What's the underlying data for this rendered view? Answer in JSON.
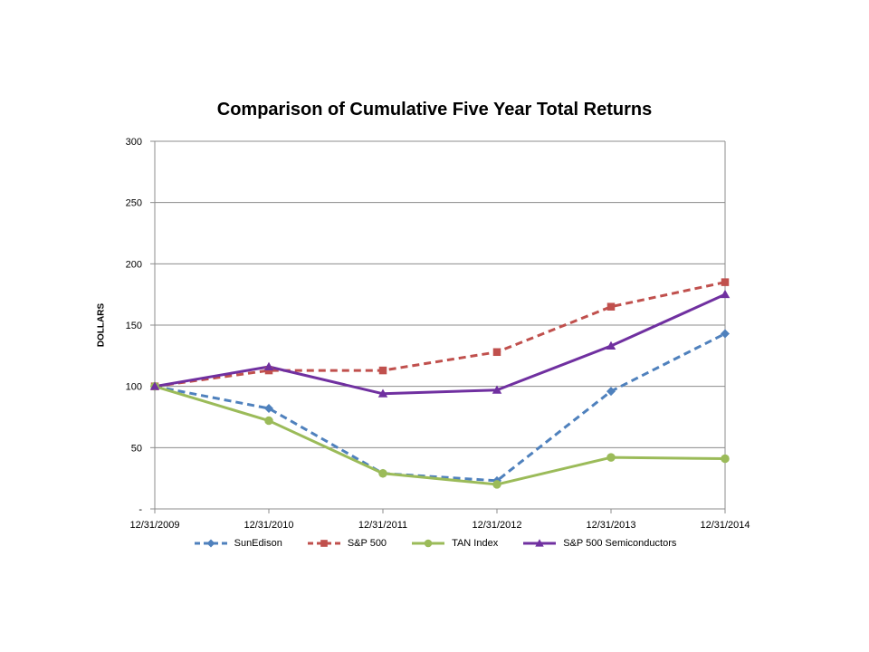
{
  "chart_data": {
    "type": "line",
    "title": "Comparison of Cumulative Five Year Total Returns",
    "xlabel": "",
    "ylabel": "DOLLARS",
    "x": [
      "12/31/2009",
      "12/31/2010",
      "12/31/2011",
      "12/31/2012",
      "12/31/2013",
      "12/31/2014"
    ],
    "ylim": [
      0,
      300
    ],
    "yticks": [
      0,
      50,
      100,
      150,
      200,
      250,
      300
    ],
    "ytick_labels": [
      "-",
      "50",
      "100",
      "150",
      "200",
      "250",
      "300"
    ],
    "grid": true,
    "legend_position": "bottom",
    "series": [
      {
        "name": "SunEdison",
        "values": [
          100,
          82,
          29,
          23,
          96,
          143
        ],
        "color": "#4f81bd",
        "dash": true,
        "marker": "diamond"
      },
      {
        "name": "S&P 500",
        "values": [
          100,
          113,
          113,
          128,
          165,
          185
        ],
        "color": "#c0504d",
        "dash": true,
        "marker": "square"
      },
      {
        "name": "TAN Index",
        "values": [
          100,
          72,
          29,
          20,
          42,
          41
        ],
        "color": "#9bbb59",
        "dash": false,
        "marker": "circle"
      },
      {
        "name": "S&P 500 Semiconductors",
        "values": [
          100,
          116,
          94,
          97,
          133,
          175
        ],
        "color": "#7030a0",
        "dash": false,
        "marker": "triangle"
      }
    ]
  }
}
